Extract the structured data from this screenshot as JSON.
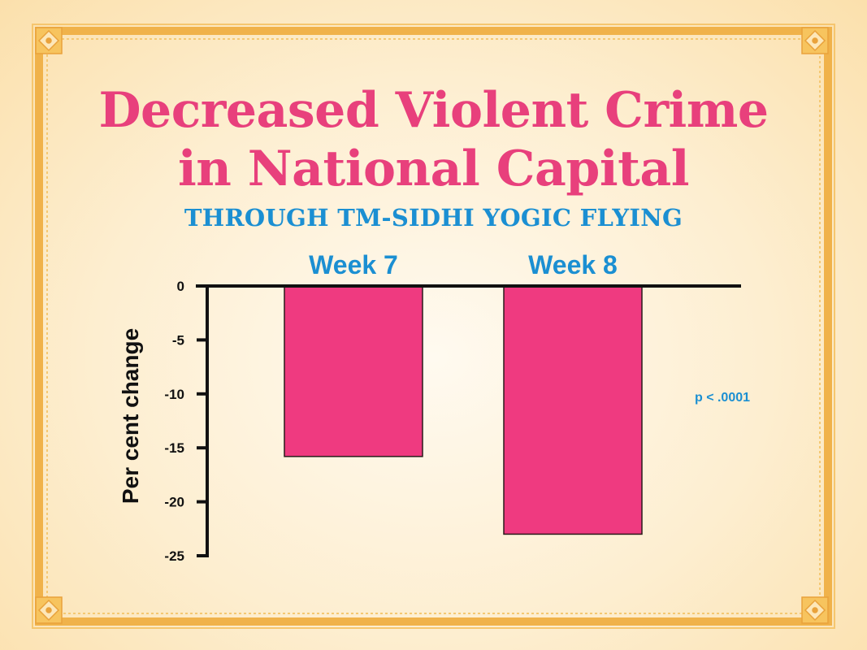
{
  "title_line1": "Decreased Violent Crime",
  "title_line2": "in National Capital",
  "subtitle": "THROUGH TM-SIDHI YOGIC FLYING",
  "colors": {
    "title": "#e8407c",
    "subtitle": "#1b8fd2",
    "bar": "#ef3a80",
    "frame": "#f0b24a",
    "axis": "#111111"
  },
  "chart_data": {
    "type": "bar",
    "categories": [
      "Week 7",
      "Week 8"
    ],
    "values": [
      -15.8,
      -23
    ],
    "ylabel": "Per cent change",
    "ylim": [
      -25,
      0
    ],
    "yticks": [
      "0",
      "-5",
      "-10",
      "-15",
      "-20",
      "-25"
    ],
    "annotation": "p < .0001",
    "category_label_position": "top",
    "grid": false
  }
}
